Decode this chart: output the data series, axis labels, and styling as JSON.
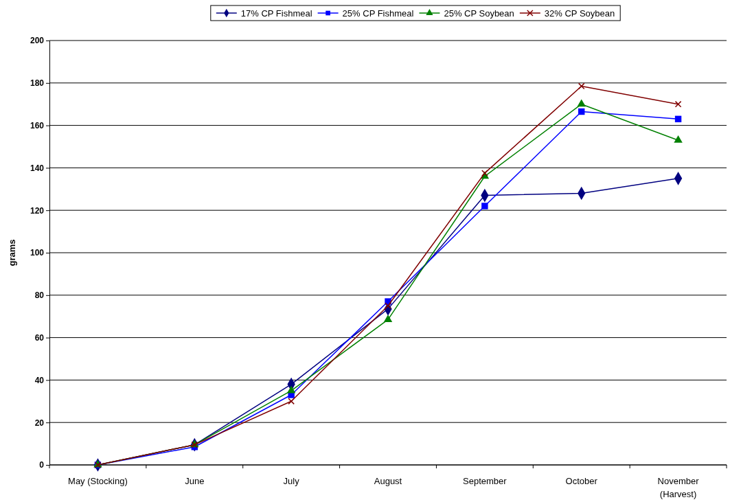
{
  "chart_data": {
    "type": "line",
    "ylabel": "grams",
    "categories": [
      "May (Stocking)",
      "June",
      "July",
      "August",
      "September",
      "October",
      "November\n(Harvest)"
    ],
    "series": [
      {
        "name": "17% CP Fishmeal",
        "color": "#000080",
        "marker": "diamond",
        "values": [
          0,
          9.5,
          38,
          73.5,
          127,
          128,
          135
        ]
      },
      {
        "name": "25% CP Fishmeal",
        "color": "#0000ff",
        "marker": "square",
        "values": [
          0,
          8.5,
          33,
          77,
          122,
          166.5,
          163
        ]
      },
      {
        "name": "25% CP Soybean",
        "color": "#008000",
        "marker": "triangle",
        "values": [
          0,
          9.5,
          35,
          68.5,
          136,
          170,
          153
        ]
      },
      {
        "name": "32% CP Soybean",
        "color": "#800000",
        "marker": "cross",
        "values": [
          0,
          9.5,
          30,
          75,
          137.5,
          178.5,
          170
        ]
      }
    ],
    "ylim": [
      0,
      200
    ],
    "yticks": [
      0,
      20,
      40,
      60,
      80,
      100,
      120,
      140,
      160,
      180,
      200
    ],
    "grid": "y",
    "legend": "top",
    "line_style": "solid"
  }
}
